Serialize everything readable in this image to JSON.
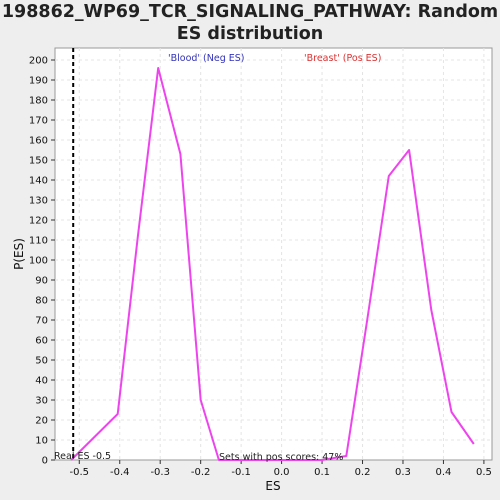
{
  "title_lines": [
    "198862_WP69_TCR_SIGNALING_PATHWAY: Random",
    "ES distribution"
  ],
  "chart_data": {
    "type": "line",
    "xlabel": "ES",
    "ylabel": "P(ES)",
    "xlim": [
      -0.56,
      0.52
    ],
    "ylim": [
      0,
      206
    ],
    "x_ticks": [
      "-0.5",
      "-0.4",
      "-0.3",
      "-0.2",
      "-0.1",
      "0.0",
      "0.1",
      "0.2",
      "0.3",
      "0.4",
      "0.5"
    ],
    "y_ticks": [
      0,
      10,
      20,
      30,
      40,
      50,
      60,
      70,
      80,
      90,
      100,
      110,
      120,
      130,
      140,
      150,
      160,
      170,
      180,
      190,
      200
    ],
    "grid": true,
    "series": [
      {
        "color": "#ee44ee",
        "x": [
          -0.52,
          -0.47,
          -0.405,
          -0.355,
          -0.305,
          -0.25,
          -0.2,
          -0.155,
          -0.1,
          0.0,
          0.1,
          0.16,
          0.21,
          0.265,
          0.315,
          0.37,
          0.42,
          0.475
        ],
        "y": [
          0,
          10,
          23,
          112,
          196,
          153,
          30,
          0,
          0,
          0,
          0,
          2,
          68,
          142,
          155,
          75,
          24,
          8
        ]
      }
    ],
    "reference_line": {
      "x": -0.515,
      "label": "Real ES -0.5",
      "style": "dashed",
      "color": "#000000"
    },
    "annotations": {
      "neg": {
        "text": "'Blood' (Neg ES)",
        "color": "#3333bb"
      },
      "pos": {
        "text": "'Breast' (Pos ES)",
        "color": "#dd3333"
      },
      "bottom": {
        "text": "Sets with pos scores: 47%",
        "color": "#222222"
      }
    }
  }
}
